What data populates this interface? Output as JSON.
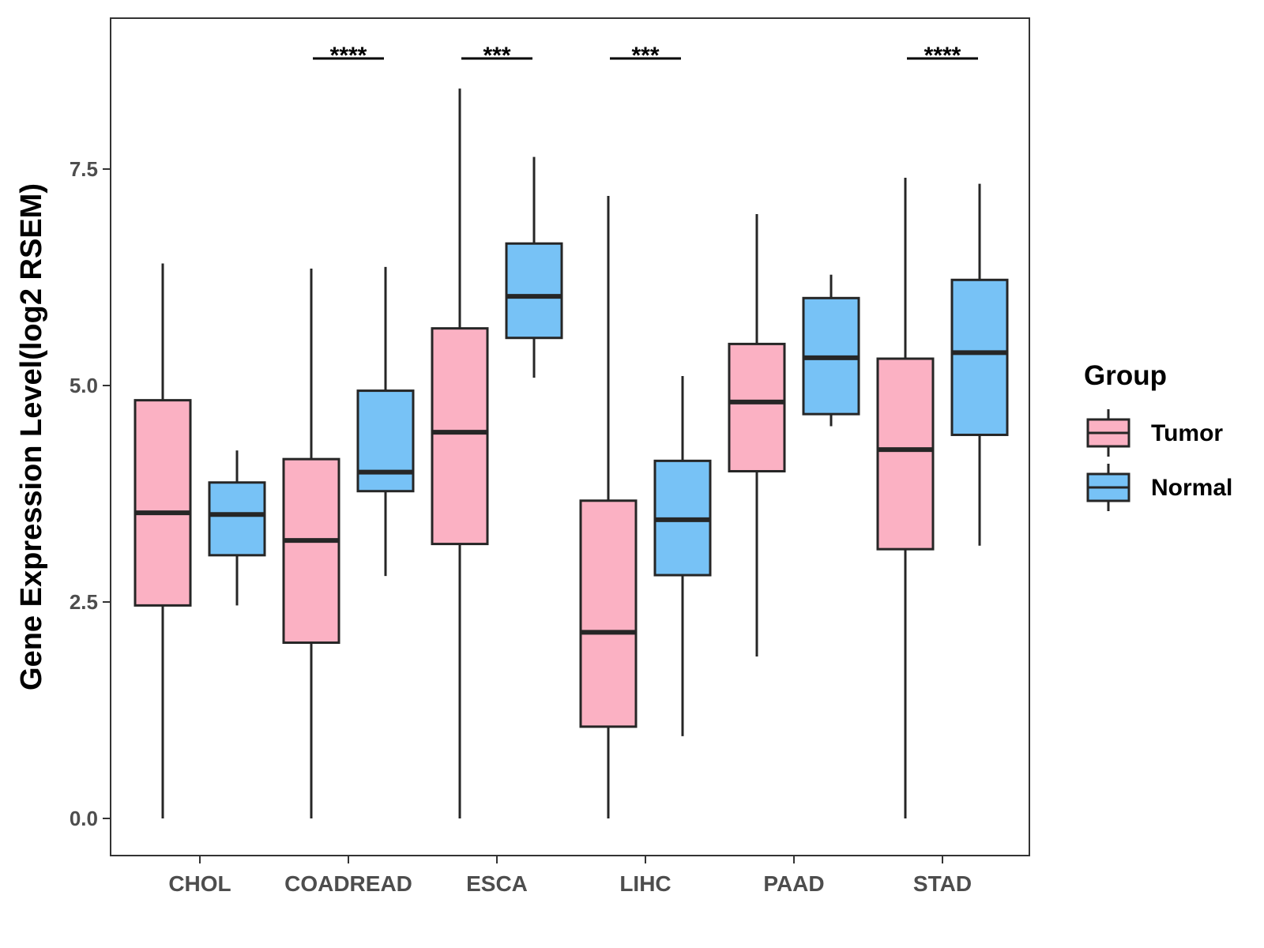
{
  "chart_data": {
    "type": "box",
    "title": "",
    "xlabel": "",
    "ylabel": "Gene Expression Level(log2 RSEM)",
    "ylim": [
      -0.43,
      9.26
    ],
    "yticks": [
      0,
      2.5,
      5,
      7.5
    ],
    "ytick_labels": [
      "0.0",
      "2.5",
      "5.0",
      "7.5"
    ],
    "categories": [
      "CHOL",
      "COADREAD",
      "ESCA",
      "LIHC",
      "PAAD",
      "STAD"
    ],
    "series": [
      {
        "name": "Tumor",
        "color": "#fbb1c3",
        "boxes": [
          {
            "min": 0.0,
            "q1": 2.46,
            "median": 3.53,
            "q3": 4.83,
            "max": 6.41
          },
          {
            "min": 0.0,
            "q1": 2.03,
            "median": 3.21,
            "q3": 4.15,
            "max": 6.35
          },
          {
            "min": 0.0,
            "q1": 3.17,
            "median": 4.46,
            "q3": 5.66,
            "max": 8.43
          },
          {
            "min": 0.0,
            "q1": 1.06,
            "median": 2.15,
            "q3": 3.67,
            "max": 7.19
          },
          {
            "min": 1.87,
            "q1": 4.01,
            "median": 4.81,
            "q3": 5.48,
            "max": 6.98
          },
          {
            "min": 0.0,
            "q1": 3.11,
            "median": 4.26,
            "q3": 5.31,
            "max": 7.4
          }
        ]
      },
      {
        "name": "Normal",
        "color": "#77c2f6",
        "boxes": [
          {
            "min": 2.46,
            "q1": 3.04,
            "median": 3.51,
            "q3": 3.88,
            "max": 4.25
          },
          {
            "min": 2.8,
            "q1": 3.78,
            "median": 4.0,
            "q3": 4.94,
            "max": 6.37
          },
          {
            "min": 5.09,
            "q1": 5.55,
            "median": 6.03,
            "q3": 6.64,
            "max": 7.64
          },
          {
            "min": 0.95,
            "q1": 2.81,
            "median": 3.45,
            "q3": 4.13,
            "max": 5.11
          },
          {
            "min": 4.53,
            "q1": 4.67,
            "median": 5.32,
            "q3": 6.01,
            "max": 6.28
          },
          {
            "min": 3.15,
            "q1": 4.43,
            "median": 5.38,
            "q3": 6.22,
            "max": 7.33
          }
        ]
      }
    ],
    "significance": [
      "",
      "****",
      "***",
      "***",
      "",
      "****"
    ],
    "legend": {
      "title": "Group",
      "position": "right",
      "entries": [
        "Tumor",
        "Normal"
      ]
    }
  }
}
